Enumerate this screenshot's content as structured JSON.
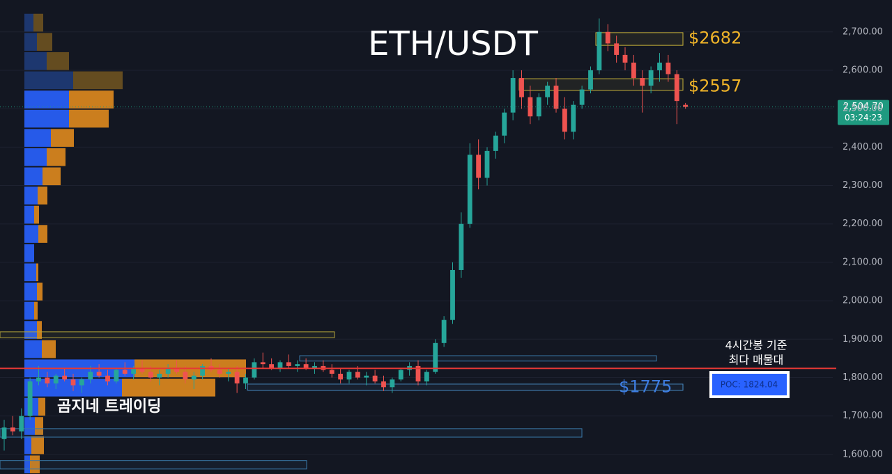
{
  "chart_data": {
    "type": "candlestick",
    "title": "ETH/USDT",
    "watermark": "곰지네 트레이딩",
    "up_color": "#26a69a",
    "down_color": "#ef5350",
    "open": [
      1640,
      1670,
      1660,
      1700,
      1790,
      1800,
      1785,
      1805,
      1795,
      1780,
      1795,
      1815,
      1805,
      1790,
      1820,
      1810,
      1825,
      1815,
      1800,
      1810,
      1825,
      1815,
      1795,
      1805,
      1830,
      1820,
      1810,
      1815,
      1785,
      1800,
      1840,
      1835,
      1825,
      1840,
      1830,
      1835,
      1825,
      1830,
      1820,
      1810,
      1795,
      1815,
      1800,
      1805,
      1790,
      1775,
      1795,
      1820,
      1830,
      1790,
      1815,
      1890,
      1950,
      2080,
      2200,
      2380,
      2320,
      2390,
      2430,
      2490,
      2580,
      2530,
      2480,
      2530,
      2560,
      2500,
      2440,
      2510,
      2550,
      2600,
      2700,
      2670,
      2640,
      2620,
      2580,
      2560,
      2600,
      2620,
      2590,
      2510
    ],
    "high": [
      1690,
      1700,
      1720,
      1800,
      1830,
      1815,
      1810,
      1825,
      1810,
      1800,
      1830,
      1835,
      1820,
      1825,
      1840,
      1830,
      1845,
      1830,
      1820,
      1835,
      1845,
      1830,
      1815,
      1835,
      1850,
      1835,
      1825,
      1830,
      1810,
      1850,
      1865,
      1850,
      1845,
      1860,
      1845,
      1850,
      1840,
      1845,
      1835,
      1825,
      1820,
      1830,
      1815,
      1820,
      1805,
      1800,
      1825,
      1840,
      1845,
      1820,
      1900,
      1960,
      2100,
      2230,
      2410,
      2420,
      2400,
      2440,
      2500,
      2600,
      2600,
      2560,
      2540,
      2570,
      2580,
      2530,
      2520,
      2560,
      2610,
      2735,
      2720,
      2690,
      2660,
      2640,
      2600,
      2610,
      2645,
      2640,
      2600,
      2515
    ],
    "low": [
      1610,
      1650,
      1640,
      1690,
      1780,
      1775,
      1770,
      1790,
      1765,
      1760,
      1785,
      1800,
      1780,
      1785,
      1805,
      1795,
      1810,
      1790,
      1780,
      1800,
      1810,
      1785,
      1770,
      1795,
      1815,
      1800,
      1790,
      1760,
      1770,
      1795,
      1825,
      1820,
      1815,
      1825,
      1815,
      1820,
      1810,
      1815,
      1800,
      1785,
      1785,
      1795,
      1780,
      1785,
      1765,
      1760,
      1790,
      1805,
      1780,
      1780,
      1810,
      1880,
      1940,
      2060,
      2190,
      2290,
      2300,
      2370,
      2410,
      2470,
      2500,
      2460,
      2470,
      2510,
      2490,
      2420,
      2420,
      2500,
      2540,
      2590,
      2650,
      2620,
      2600,
      2560,
      2490,
      2540,
      2570,
      2570,
      2460,
      2500
    ],
    "close": [
      1670,
      1660,
      1700,
      1790,
      1800,
      1785,
      1805,
      1795,
      1780,
      1795,
      1815,
      1805,
      1790,
      1820,
      1810,
      1825,
      1815,
      1800,
      1810,
      1825,
      1815,
      1795,
      1805,
      1830,
      1820,
      1810,
      1815,
      1785,
      1800,
      1840,
      1835,
      1825,
      1840,
      1830,
      1835,
      1825,
      1830,
      1820,
      1810,
      1795,
      1815,
      1800,
      1805,
      1790,
      1775,
      1795,
      1820,
      1830,
      1790,
      1815,
      1890,
      1950,
      2080,
      2200,
      2380,
      2320,
      2390,
      2430,
      2490,
      2580,
      2530,
      2480,
      2530,
      2560,
      2500,
      2440,
      2510,
      2550,
      2600,
      2700,
      2670,
      2640,
      2620,
      2580,
      2560,
      2600,
      2620,
      2590,
      2520,
      2504.7
    ],
    "ylim": [
      1549,
      2783
    ],
    "yticks": [
      {
        "value": 1600,
        "label": "1,600.00"
      },
      {
        "value": 1700,
        "label": "1,700.00"
      },
      {
        "value": 1800,
        "label": "1,800.00"
      },
      {
        "value": 1900,
        "label": "1,900.00"
      },
      {
        "value": 2000,
        "label": "2,000.00"
      },
      {
        "value": 2100,
        "label": "2,100.00"
      },
      {
        "value": 2200,
        "label": "2,200.00"
      },
      {
        "value": 2300,
        "label": "2,300.00"
      },
      {
        "value": 2400,
        "label": "2,400.00"
      },
      {
        "value": 2500,
        "label": "2,500.00"
      },
      {
        "value": 2600,
        "label": "2,600.00"
      },
      {
        "value": 2700,
        "label": "2,700.00"
      }
    ],
    "grid": true,
    "last_price": {
      "value": 2504.7,
      "label": "2,504.70",
      "color": "#1f9a80"
    },
    "countdown": "03:24:23",
    "poc": {
      "value": 1824.04,
      "label": "POC: 1824.04",
      "color": "#e53935",
      "note": [
        "4시간봉 기준",
        "최다 매물대"
      ]
    },
    "zones": [
      {
        "value": 2682,
        "label": "$2682",
        "low": 2665,
        "high": 2698,
        "color": "#c9b33a",
        "label_color": "#f0b429"
      },
      {
        "value": 2557,
        "label": "$2557",
        "low": 2548,
        "high": 2578,
        "color": "#c9b33a",
        "label_color": "#f0b429"
      },
      {
        "value": 1775,
        "label": "$1775",
        "low": 1767,
        "high": 1783,
        "color": "#4a8fc9",
        "label_color": "#3d7ce0"
      },
      {
        "low": 1904,
        "high": 1919,
        "color": "#b3a33a"
      },
      {
        "low": 1843,
        "high": 1857,
        "color": "#3a78a8"
      },
      {
        "low": 1645,
        "high": 1667,
        "color": "#3a78a8"
      },
      {
        "low": 1562,
        "high": 1584,
        "color": "#3a78a8"
      }
    ],
    "volume_profile": {
      "bins": [
        1549,
        1599,
        1649,
        1699,
        1749,
        1799,
        1849,
        1899,
        1949,
        1999,
        2049,
        2099,
        2149,
        2199,
        2249,
        2299,
        2349,
        2399,
        2449,
        2499,
        2549,
        2599,
        2649,
        2699,
        2749
      ],
      "buy": [
        8,
        10,
        15,
        20,
        140,
        158,
        25,
        18,
        14,
        18,
        17,
        14,
        20,
        14,
        19,
        26,
        32,
        38,
        64,
        64,
        70,
        32,
        18,
        13
      ],
      "sell": [
        14,
        18,
        12,
        10,
        134,
        160,
        20,
        7,
        5,
        8,
        3,
        0,
        13,
        7,
        14,
        26,
        27,
        33,
        57,
        64,
        71,
        32,
        22,
        14
      ]
    }
  }
}
